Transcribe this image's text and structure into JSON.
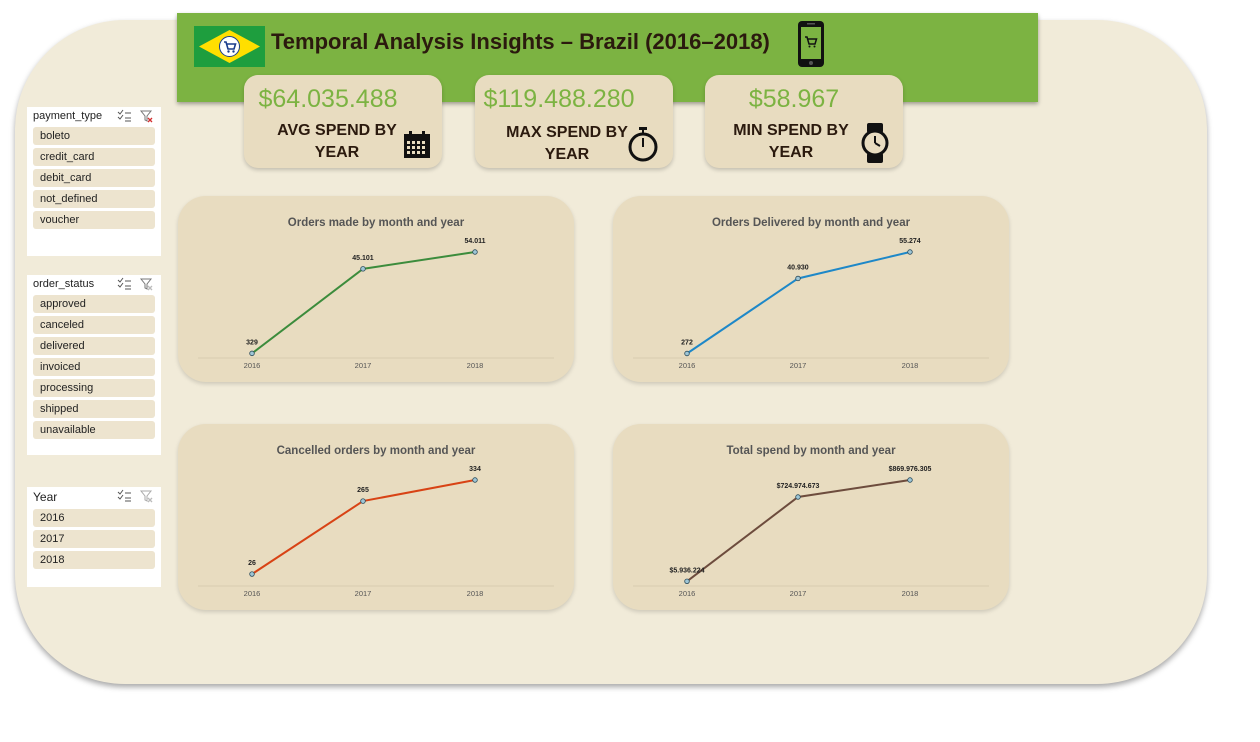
{
  "header": {
    "title": "Temporal Analysis Insights – Brazil (2016–2018)"
  },
  "kpis": [
    {
      "value": "$64.035.488",
      "label": "AVG SPEND BY YEAR",
      "icon": "calendar-icon"
    },
    {
      "value": "$119.488.280",
      "label": "MAX SPEND BY YEAR",
      "icon": "stopwatch-icon"
    },
    {
      "value": "$58.967",
      "label": "MIN SPEND BY YEAR",
      "icon": "wristwatch-icon"
    }
  ],
  "slicers": {
    "payment_type": {
      "title": "payment_type",
      "items": [
        "boleto",
        "credit_card",
        "debit_card",
        "not_defined",
        "voucher"
      ]
    },
    "order_status": {
      "title": "order_status",
      "items": [
        "approved",
        "canceled",
        "delivered",
        "invoiced",
        "processing",
        "shipped",
        "unavailable"
      ]
    },
    "year": {
      "title": "Year",
      "items": [
        "2016",
        "2017",
        "2018"
      ]
    }
  },
  "colors": {
    "accent_green": "#7cb342",
    "orders_line": "#3c8c3c",
    "delivered_line": "#1e88c8",
    "cancelled_line": "#d84315",
    "spend_line": "#6d4c3d"
  },
  "chart_data": [
    {
      "type": "line",
      "title": "Orders made by month and year",
      "categories": [
        "2016",
        "2017",
        "2018"
      ],
      "values": [
        329,
        45101,
        54011
      ],
      "labels": [
        "329",
        "45.101",
        "54.011"
      ],
      "color": "#3c8c3c"
    },
    {
      "type": "line",
      "title": "Orders Delivered by month and year",
      "categories": [
        "2016",
        "2017",
        "2018"
      ],
      "values": [
        272,
        40930,
        55274
      ],
      "labels": [
        "272",
        "40.930",
        "55.274"
      ],
      "color": "#1e88c8"
    },
    {
      "type": "line",
      "title": "Cancelled orders by month and year",
      "categories": [
        "2016",
        "2017",
        "2018"
      ],
      "values": [
        26,
        265,
        334
      ],
      "labels": [
        "26",
        "265",
        "334"
      ],
      "color": "#d84315"
    },
    {
      "type": "line",
      "title": "Total spend by month and year",
      "categories": [
        "2016",
        "2017",
        "2018"
      ],
      "values": [
        5936224,
        724974673,
        869976305
      ],
      "labels": [
        "$5.936.224",
        "$724.974.673",
        "$869.976.305"
      ],
      "color": "#6d4c3d"
    }
  ]
}
